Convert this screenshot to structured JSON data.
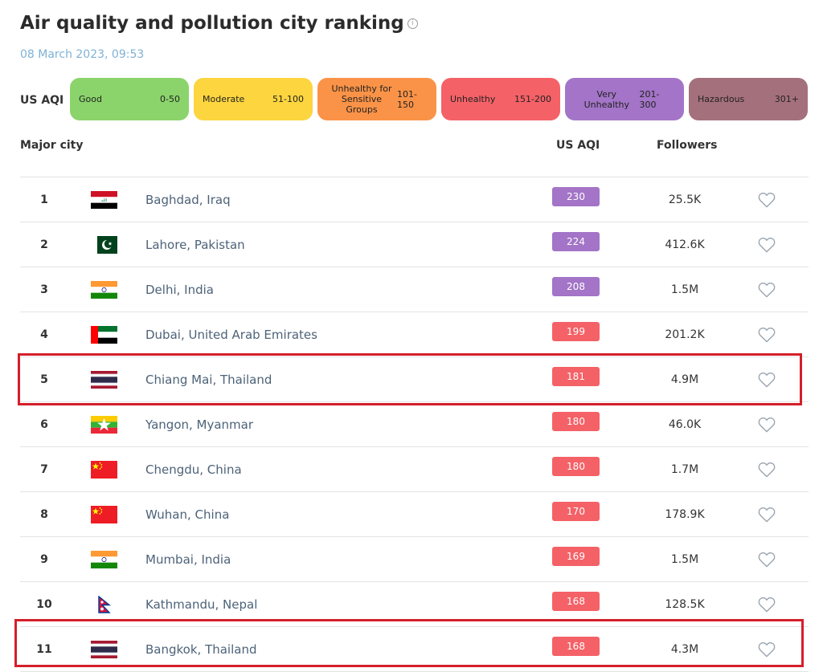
{
  "header": {
    "title": "Air quality and pollution city ranking",
    "info_icon": "i",
    "date": "08 March 2023, 09:53"
  },
  "legend": {
    "label": "US AQI",
    "items": [
      {
        "name": "Good",
        "range": "0-50",
        "color": "#8bd46b"
      },
      {
        "name": "Moderate",
        "range": "51-100",
        "color": "#fcd53f"
      },
      {
        "name": "Unhealthy for Sensitive Groups",
        "range": "101-150",
        "color": "#fa9347"
      },
      {
        "name": "Unhealthy",
        "range": "151-200",
        "color": "#f46167"
      },
      {
        "name": "Very Unhealthy",
        "range": "201-300",
        "color": "#a374c7"
      },
      {
        "name": "Hazardous",
        "range": "301+",
        "color": "#a4707c"
      }
    ]
  },
  "table": {
    "headers": {
      "city": "Major city",
      "aqi": "US AQI",
      "followers": "Followers"
    },
    "rows": [
      {
        "rank": "1",
        "flag": "iraq",
        "city": "Baghdad, Iraq",
        "aqi": "230",
        "followers": "25.5K",
        "aqi_color": "#a374c7"
      },
      {
        "rank": "2",
        "flag": "pakistan",
        "city": "Lahore, Pakistan",
        "aqi": "224",
        "followers": "412.6K",
        "aqi_color": "#a374c7"
      },
      {
        "rank": "3",
        "flag": "india",
        "city": "Delhi, India",
        "aqi": "208",
        "followers": "1.5M",
        "aqi_color": "#a374c7"
      },
      {
        "rank": "4",
        "flag": "uae",
        "city": "Dubai, United Arab Emirates",
        "aqi": "199",
        "followers": "201.2K",
        "aqi_color": "#f46167"
      },
      {
        "rank": "5",
        "flag": "thailand",
        "city": "Chiang Mai, Thailand",
        "aqi": "181",
        "followers": "4.9M",
        "aqi_color": "#f46167"
      },
      {
        "rank": "6",
        "flag": "myanmar",
        "city": "Yangon, Myanmar",
        "aqi": "180",
        "followers": "46.0K",
        "aqi_color": "#f46167"
      },
      {
        "rank": "7",
        "flag": "china",
        "city": "Chengdu, China",
        "aqi": "180",
        "followers": "1.7M",
        "aqi_color": "#f46167"
      },
      {
        "rank": "8",
        "flag": "china",
        "city": "Wuhan, China",
        "aqi": "170",
        "followers": "178.9K",
        "aqi_color": "#f46167"
      },
      {
        "rank": "9",
        "flag": "india",
        "city": "Mumbai, India",
        "aqi": "169",
        "followers": "1.5M",
        "aqi_color": "#f46167"
      },
      {
        "rank": "10",
        "flag": "nepal",
        "city": "Kathmandu, Nepal",
        "aqi": "168",
        "followers": "128.5K",
        "aqi_color": "#f46167"
      },
      {
        "rank": "11",
        "flag": "thailand",
        "city": "Bangkok, Thailand",
        "aqi": "168",
        "followers": "4.3M",
        "aqi_color": "#f46167"
      }
    ]
  },
  "highlight_color": "#d41f2a"
}
